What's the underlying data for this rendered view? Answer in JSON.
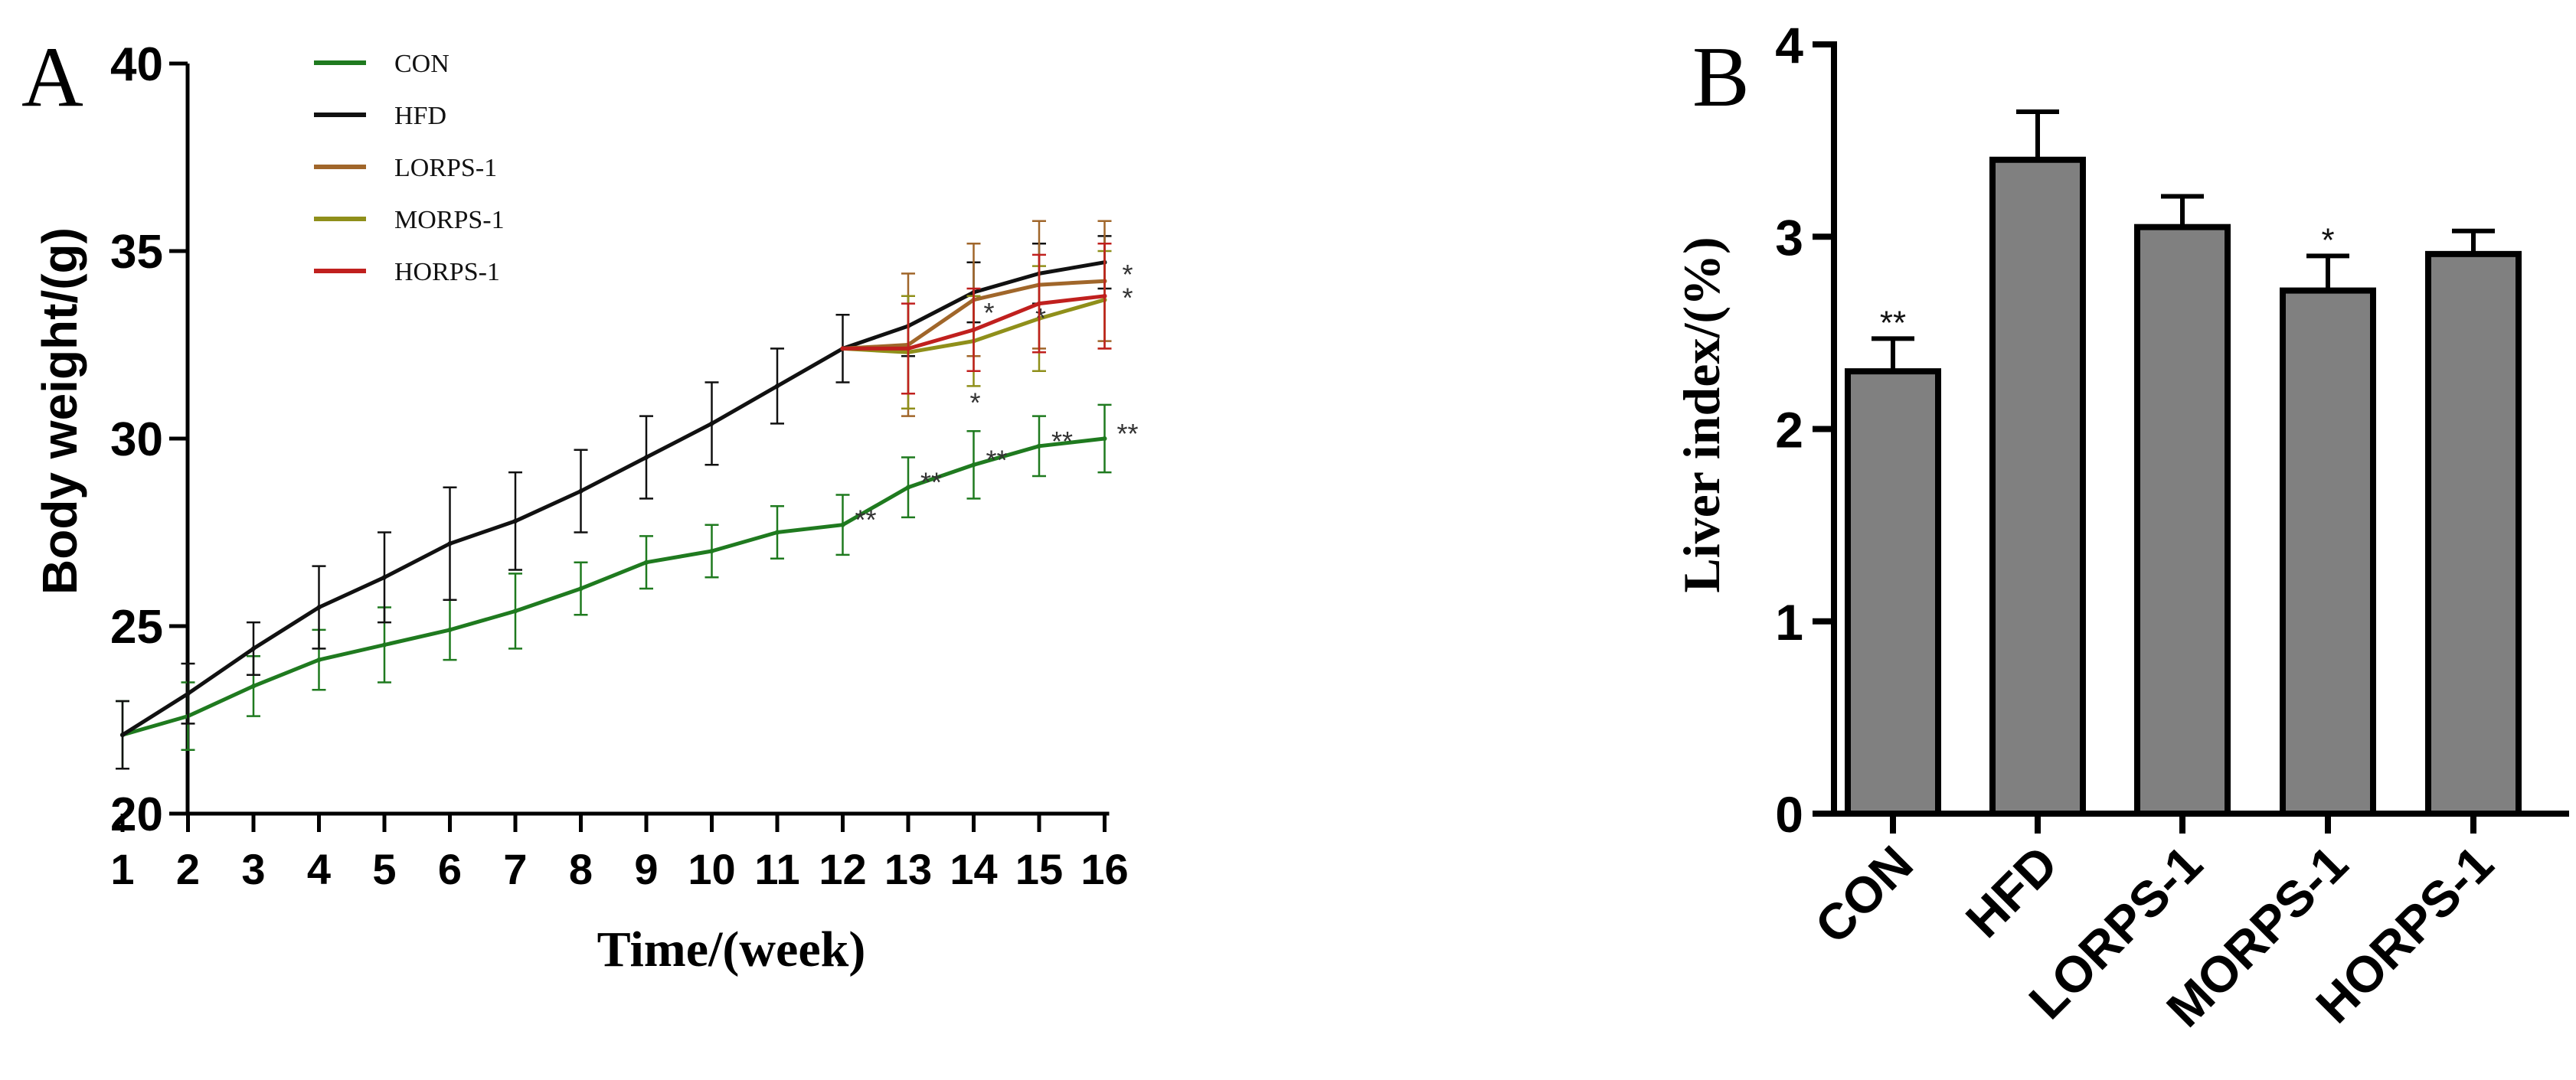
{
  "chart_data": [
    {
      "panel": "A",
      "type": "line",
      "xlabel": "Time/(week)",
      "ylabel": "Body weight/(g)",
      "ylim": [
        20,
        40
      ],
      "yticks": [
        20,
        25,
        30,
        35,
        40
      ],
      "xticks": [
        1,
        2,
        3,
        4,
        5,
        6,
        7,
        8,
        9,
        10,
        11,
        12,
        13,
        14,
        15,
        16
      ],
      "legend": {
        "position": "top-left"
      },
      "series": [
        {
          "name": "CON",
          "color": "#1f7a1f",
          "x": [
            1,
            2,
            3,
            4,
            5,
            6,
            7,
            8,
            9,
            10,
            11,
            12,
            13,
            14,
            15,
            16
          ],
          "values": [
            22.1,
            22.6,
            23.4,
            24.1,
            24.5,
            24.9,
            25.4,
            26.0,
            26.7,
            27.0,
            27.5,
            27.7,
            28.7,
            29.3,
            29.8,
            30.0
          ],
          "errors": [
            0.9,
            0.9,
            0.8,
            0.8,
            1.0,
            0.8,
            1.0,
            0.7,
            0.7,
            0.7,
            0.7,
            0.8,
            0.8,
            0.9,
            0.8,
            0.9
          ],
          "significance": [
            "",
            "",
            "",
            "",
            "",
            "",
            "",
            "",
            "",
            "",
            "",
            "**",
            "**",
            "**",
            "**",
            "**"
          ]
        },
        {
          "name": "HFD",
          "color": "#111111",
          "x": [
            1,
            2,
            3,
            4,
            5,
            6,
            7,
            8,
            9,
            10,
            11,
            12,
            13,
            14,
            15,
            16
          ],
          "values": [
            22.1,
            23.2,
            24.4,
            25.5,
            26.3,
            27.2,
            27.8,
            28.6,
            29.5,
            30.4,
            31.4,
            32.4,
            33.0,
            33.9,
            34.4,
            34.7
          ],
          "errors": [
            0.9,
            0.8,
            0.7,
            1.1,
            1.2,
            1.5,
            1.3,
            1.1,
            1.1,
            1.1,
            1.0,
            0.9,
            0.8,
            0.8,
            0.8,
            0.7
          ],
          "significance": [
            "",
            "",
            "",
            "",
            "",
            "",
            "",
            "",
            "",
            "",
            "",
            "",
            "",
            "",
            "",
            ""
          ]
        },
        {
          "name": "LORPS-1",
          "color": "#a0662a",
          "x": [
            12,
            13,
            14,
            15,
            16
          ],
          "values": [
            32.4,
            32.5,
            33.7,
            34.1,
            34.2
          ],
          "errors": [
            0.0,
            1.9,
            1.5,
            1.7,
            1.6
          ],
          "significance": [
            "",
            "",
            "",
            "",
            "*"
          ]
        },
        {
          "name": "MORPS-1",
          "color": "#8f8f1a",
          "x": [
            12,
            13,
            14,
            15,
            16
          ],
          "values": [
            32.4,
            32.3,
            32.6,
            33.2,
            33.7
          ],
          "errors": [
            0.0,
            1.5,
            1.2,
            1.4,
            1.3
          ],
          "significance": [
            "",
            "",
            "*",
            "*",
            "*"
          ]
        },
        {
          "name": "HORPS-1",
          "color": "#c0201e",
          "x": [
            12,
            13,
            14,
            15,
            16
          ],
          "values": [
            32.4,
            32.4,
            32.9,
            33.6,
            33.8
          ],
          "errors": [
            0.0,
            1.2,
            1.1,
            1.3,
            1.4
          ],
          "significance": [
            "",
            "",
            "*",
            "",
            ""
          ]
        }
      ]
    },
    {
      "panel": "B",
      "type": "bar",
      "categories": [
        "CON",
        "HFD",
        "LORPS-1",
        "MORPS-1",
        "HORPS-1"
      ],
      "values": [
        2.3,
        3.4,
        3.05,
        2.72,
        2.91
      ],
      "errors": [
        0.17,
        0.25,
        0.16,
        0.18,
        0.12
      ],
      "significance": [
        "**",
        "",
        "",
        "*",
        ""
      ],
      "ylabel": "Liver index/(%)",
      "ylim": [
        0,
        4
      ],
      "yticks": [
        0,
        1,
        2,
        3,
        4
      ],
      "bar_color": "#808080",
      "edge_color": "#000000"
    }
  ]
}
